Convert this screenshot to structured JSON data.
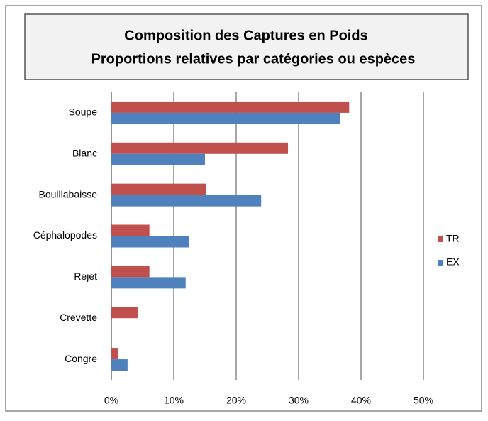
{
  "chart_data": {
    "type": "barh",
    "title": "Composition des Captures en Poids",
    "subtitle": "Proportions relatives par catégories ou espèces",
    "categories": [
      "Soupe",
      "Blanc",
      "Bouillabaisse",
      "Céphalopodes",
      "Rejet",
      "Crevette",
      "Congre"
    ],
    "series": [
      {
        "name": "TR",
        "color": "#c0504d",
        "values": [
          38.1,
          28.3,
          15.2,
          6.1,
          6.1,
          4.2,
          1.1
        ]
      },
      {
        "name": "EX",
        "color": "#4f81bd",
        "values": [
          36.6,
          15.0,
          24.0,
          12.4,
          11.9,
          0,
          2.6
        ]
      }
    ],
    "xlim": [
      0,
      50
    ],
    "xticks": [
      {
        "value": 0,
        "label": "0%"
      },
      {
        "value": 10,
        "label": "10%"
      },
      {
        "value": 20,
        "label": "20%"
      },
      {
        "value": 30,
        "label": "30%"
      },
      {
        "value": 40,
        "label": "40%"
      },
      {
        "value": 50,
        "label": "50%"
      }
    ],
    "grid": true,
    "legend": "right"
  }
}
